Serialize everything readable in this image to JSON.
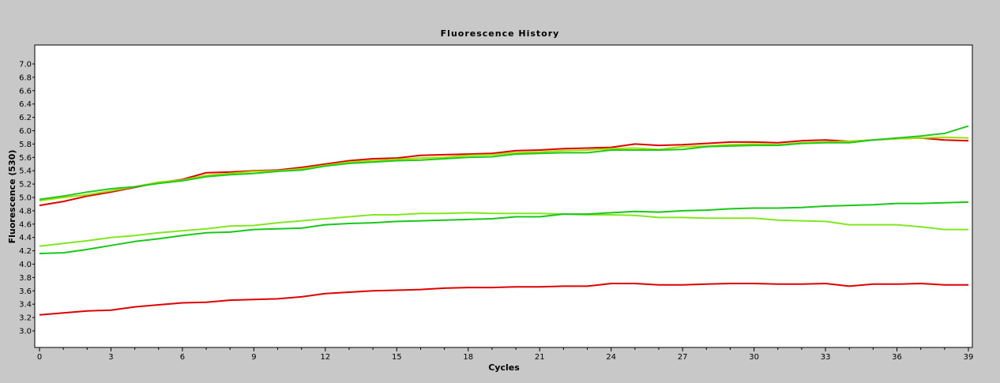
{
  "chart_data": {
    "type": "line",
    "title": "Fluorescence History",
    "xlabel": "Cycles",
    "ylabel": "Fluorescence (530)",
    "xlim": [
      0,
      39
    ],
    "ylim": [
      2.8,
      7.2
    ],
    "x_ticks": [
      "0",
      "3",
      "6",
      "9",
      "12",
      "15",
      "18",
      "21",
      "24",
      "27",
      "30",
      "33",
      "36",
      "39"
    ],
    "y_ticks": [
      "3.0",
      "3.2",
      "3.4",
      "3.6",
      "3.8",
      "4.0",
      "4.2",
      "4.4",
      "4.6",
      "4.8",
      "5.0",
      "5.2",
      "5.4",
      "5.6",
      "5.8",
      "6.0",
      "6.2",
      "6.4",
      "6.6",
      "6.8",
      "7.0"
    ],
    "grid": false,
    "legend": "none",
    "x": [
      0,
      1,
      2,
      3,
      4,
      5,
      6,
      7,
      8,
      9,
      10,
      11,
      12,
      13,
      14,
      15,
      16,
      17,
      18,
      19,
      20,
      21,
      22,
      23,
      24,
      25,
      26,
      27,
      28,
      29,
      30,
      31,
      32,
      33,
      34,
      35,
      36,
      37,
      38,
      39
    ],
    "series": [
      {
        "color": "#e00000",
        "values": [
          4.88,
          4.94,
          5.02,
          5.08,
          5.15,
          5.22,
          5.27,
          5.37,
          5.38,
          5.4,
          5.41,
          5.45,
          5.5,
          5.55,
          5.58,
          5.59,
          5.63,
          5.64,
          5.65,
          5.66,
          5.7,
          5.71,
          5.73,
          5.74,
          5.75,
          5.8,
          5.78,
          5.79,
          5.81,
          5.83,
          5.83,
          5.82,
          5.85,
          5.86,
          5.84,
          5.86,
          5.88,
          5.89,
          5.86,
          5.85
        ]
      },
      {
        "color": "#a0e000",
        "values": [
          4.95,
          5.0,
          5.04,
          5.1,
          5.16,
          5.23,
          5.26,
          5.33,
          5.36,
          5.39,
          5.4,
          5.43,
          5.48,
          5.53,
          5.55,
          5.57,
          5.59,
          5.6,
          5.63,
          5.64,
          5.67,
          5.68,
          5.7,
          5.71,
          5.73,
          5.74,
          5.72,
          5.76,
          5.77,
          5.79,
          5.8,
          5.79,
          5.82,
          5.83,
          5.84,
          5.86,
          5.88,
          5.89,
          5.9,
          5.89
        ]
      },
      {
        "color": "#20c820",
        "values": [
          4.97,
          5.02,
          5.08,
          5.13,
          5.16,
          5.21,
          5.25,
          5.31,
          5.34,
          5.36,
          5.39,
          5.41,
          5.47,
          5.51,
          5.53,
          5.55,
          5.56,
          5.58,
          5.6,
          5.61,
          5.65,
          5.66,
          5.67,
          5.67,
          5.71,
          5.71,
          5.71,
          5.72,
          5.76,
          5.77,
          5.78,
          5.78,
          5.81,
          5.82,
          5.82,
          5.86,
          5.89,
          5.92,
          5.96,
          6.07
        ]
      },
      {
        "color": "#80e820",
        "values": [
          4.27,
          4.31,
          4.35,
          4.4,
          4.43,
          4.47,
          4.5,
          4.53,
          4.57,
          4.58,
          4.62,
          4.65,
          4.68,
          4.71,
          4.74,
          4.74,
          4.76,
          4.76,
          4.77,
          4.76,
          4.76,
          4.76,
          4.75,
          4.74,
          4.74,
          4.73,
          4.7,
          4.7,
          4.69,
          4.69,
          4.69,
          4.66,
          4.65,
          4.64,
          4.59,
          4.59,
          4.59,
          4.56,
          4.52,
          4.52
        ]
      },
      {
        "color": "#18c818",
        "values": [
          4.16,
          4.17,
          4.22,
          4.28,
          4.34,
          4.38,
          4.43,
          4.47,
          4.48,
          4.52,
          4.53,
          4.54,
          4.59,
          4.61,
          4.62,
          4.64,
          4.65,
          4.66,
          4.67,
          4.68,
          4.71,
          4.71,
          4.75,
          4.75,
          4.77,
          4.79,
          4.78,
          4.8,
          4.81,
          4.83,
          4.84,
          4.84,
          4.85,
          4.87,
          4.88,
          4.89,
          4.91,
          4.91,
          4.92,
          4.93
        ]
      },
      {
        "color": "#e00000",
        "values": [
          3.24,
          3.27,
          3.3,
          3.31,
          3.36,
          3.39,
          3.42,
          3.43,
          3.46,
          3.47,
          3.48,
          3.51,
          3.56,
          3.58,
          3.6,
          3.61,
          3.62,
          3.64,
          3.65,
          3.65,
          3.66,
          3.66,
          3.67,
          3.67,
          3.71,
          3.71,
          3.69,
          3.69,
          3.7,
          3.71,
          3.71,
          3.7,
          3.7,
          3.71,
          3.67,
          3.7,
          3.7,
          3.71,
          3.69,
          3.69
        ]
      }
    ]
  }
}
